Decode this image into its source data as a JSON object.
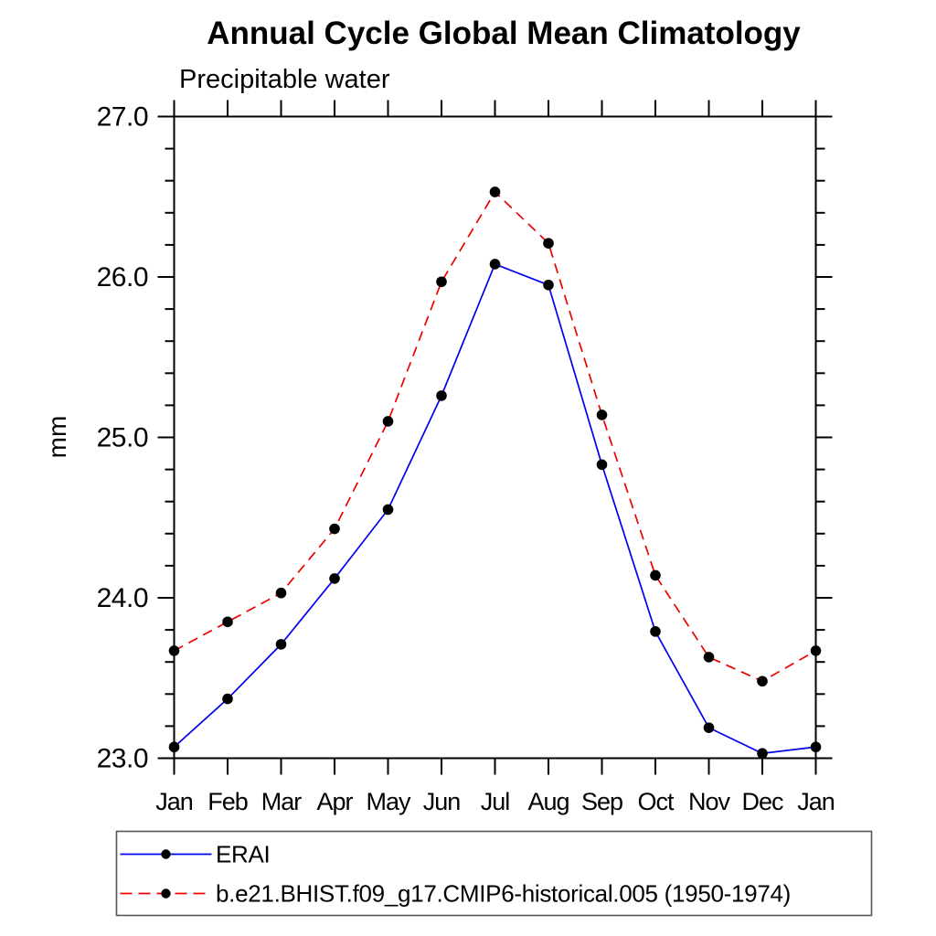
{
  "chart_data": {
    "type": "line",
    "title": "Annual Cycle Global Mean Climatology",
    "subtitle": "Precipitable water",
    "xlabel": "",
    "ylabel": "mm",
    "x_categories": [
      "Jan",
      "Feb",
      "Mar",
      "Apr",
      "May",
      "Jun",
      "Jul",
      "Aug",
      "Sep",
      "Oct",
      "Nov",
      "Dec",
      "Jan"
    ],
    "ylim": [
      23.0,
      27.0
    ],
    "yticks": [
      {
        "value": 23.0,
        "label": "23.0"
      },
      {
        "value": 24.0,
        "label": "24.0"
      },
      {
        "value": 25.0,
        "label": "25.0"
      },
      {
        "value": 26.0,
        "label": "26.0"
      },
      {
        "value": 27.0,
        "label": "27.0"
      }
    ],
    "ytick_minor_step": 0.2,
    "grid": false,
    "frame": "box-with-outward-ticks",
    "legend_position": "bottom-left-box",
    "marker": {
      "shape": "circle",
      "color": "#000000"
    },
    "series": [
      {
        "name": "ERAI",
        "color": "#0000ee",
        "line_style": "solid",
        "values": [
          23.07,
          23.37,
          23.71,
          24.12,
          24.55,
          25.26,
          26.08,
          25.95,
          24.83,
          23.79,
          23.19,
          23.03,
          23.07
        ]
      },
      {
        "name": "b.e21.BHIST.f09_g17.CMIP6-historical.005 (1950-1974)",
        "color": "#ee0000",
        "line_style": "dashed",
        "values": [
          23.67,
          23.85,
          24.03,
          24.43,
          25.1,
          25.97,
          26.53,
          26.21,
          25.14,
          24.14,
          23.63,
          23.48,
          23.67
        ]
      }
    ]
  },
  "colors": {
    "foreground": "#000000",
    "background": "#ffffff",
    "legend_border": "#555555"
  }
}
